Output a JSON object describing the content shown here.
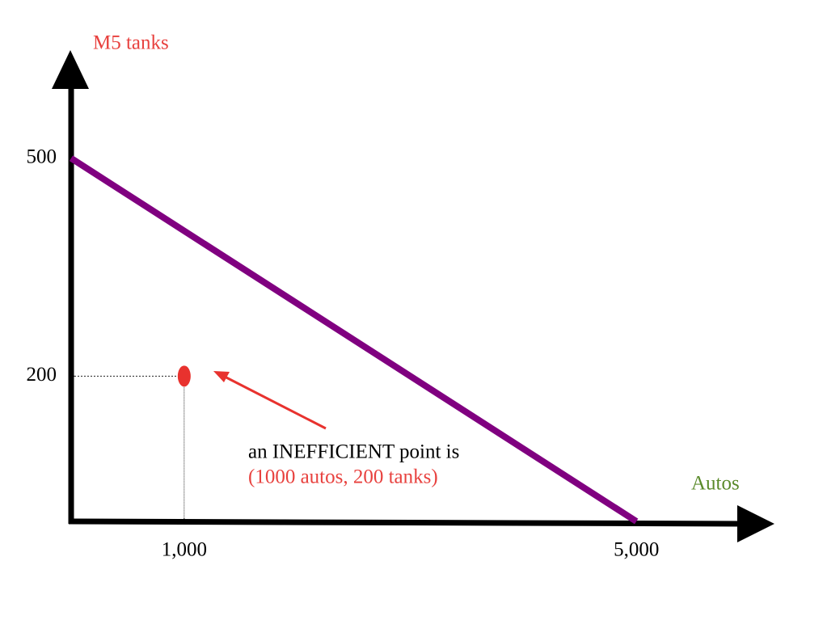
{
  "chart_data": {
    "type": "line",
    "y_label": "M5 tanks",
    "x_label": "Autos",
    "x": [
      0,
      5000
    ],
    "values": [
      500,
      0
    ],
    "color": "#800080",
    "point": {
      "x": 1000,
      "y": 200,
      "color": "#e8322e"
    },
    "annotation": [
      "an INEFFICIENT point is",
      "(1000 autos, 200 tanks)"
    ],
    "xlim": [
      0,
      6200
    ],
    "ylim": [
      0,
      640
    ],
    "xticks": [
      {
        "value": 1000,
        "label": "1,000"
      },
      {
        "value": 5000,
        "label": "5,000"
      }
    ],
    "yticks": [
      200,
      500
    ]
  }
}
